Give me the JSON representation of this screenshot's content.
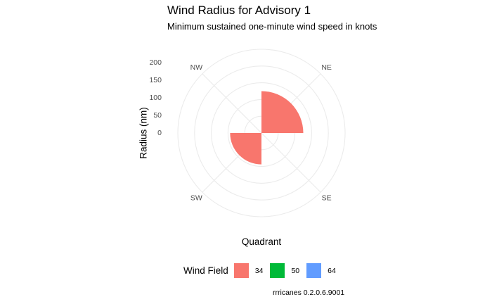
{
  "title": "Wind Radius for Advisory 1",
  "subtitle": "Minimum sustained one-minute wind speed in knots",
  "caption": "rrricanes 0.2.0.6.9001",
  "chart_data": {
    "type": "bar",
    "coord": "polar",
    "xlabel": "Quadrant",
    "ylabel": "Radius (nm)",
    "categories": [
      "NE",
      "SE",
      "SW",
      "NW"
    ],
    "y_ticks": [
      "0",
      "50",
      "100",
      "150",
      "200"
    ],
    "ylim": [
      0,
      200
    ],
    "grid": true,
    "legend_position": "bottom",
    "legend_title": "Wind Field",
    "series": [
      {
        "name": "34",
        "color": "#F8766D",
        "values": [
          100,
          0,
          75,
          0
        ]
      },
      {
        "name": "50",
        "color": "#00BA38",
        "values": [
          0,
          0,
          0,
          0
        ]
      },
      {
        "name": "64",
        "color": "#619CFF",
        "values": [
          0,
          0,
          0,
          0
        ]
      }
    ]
  }
}
